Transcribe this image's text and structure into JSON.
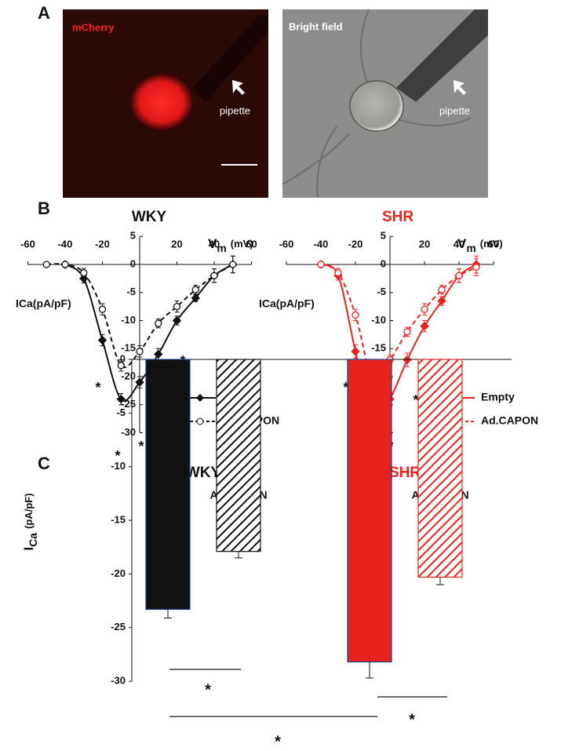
{
  "panel_labels": [
    "A",
    "B",
    "C"
  ],
  "images": [
    {
      "label": "mCherry",
      "annotation": "pipette"
    },
    {
      "label": "Bright field",
      "annotation": "pipette"
    }
  ],
  "chart_data": [
    {
      "type": "line",
      "title": "WKY",
      "title_color": "#111111",
      "x_label": {
        "main": "V",
        "sub": "m",
        "unit": "(mV)"
      },
      "y_label": "ICa(pA/pF)",
      "x": [
        -50,
        -40,
        -30,
        -20,
        -10,
        0,
        10,
        20,
        30,
        40,
        50
      ],
      "series": [
        {
          "name": "Empty",
          "color": "#111111",
          "marker": "diamond",
          "dash": false,
          "values": [
            null,
            0,
            -2.5,
            -13.5,
            -24,
            -21,
            -16,
            -10,
            -6,
            -2,
            0
          ],
          "errors": [
            null,
            0.5,
            0.8,
            1,
            1,
            1,
            1,
            0.8,
            0.6,
            1.2,
            1.5
          ]
        },
        {
          "name": "Ad.CAPON",
          "color": "#111111",
          "marker": "circle",
          "dash": true,
          "values": [
            0,
            0,
            -1.5,
            -8,
            -18,
            -15.5,
            -10.5,
            -7.5,
            -4.5,
            -2,
            0
          ],
          "errors": [
            0.3,
            0.5,
            0.8,
            1,
            1,
            1,
            0.8,
            1,
            0.8,
            1.2,
            1.5
          ]
        }
      ],
      "xlim": [
        -60,
        60
      ],
      "ylim": [
        -30,
        5
      ],
      "xticks": [
        -60,
        -40,
        -20,
        20,
        40,
        60
      ],
      "yticks": [
        5,
        0,
        -5,
        -10,
        -15,
        -20,
        -25,
        -30
      ],
      "annotations": [
        "*",
        "*",
        "*",
        "*",
        "*"
      ]
    },
    {
      "type": "line",
      "title": "SHR",
      "title_color": "#e8221f",
      "x_label": {
        "main": "V",
        "sub": "m",
        "unit": "(mV)"
      },
      "y_label": "ICa(pA/pF)",
      "x": [
        -50,
        -40,
        -30,
        -20,
        -10,
        0,
        10,
        20,
        30,
        40,
        50
      ],
      "series": [
        {
          "name": "Empty",
          "color": "#e8221f",
          "marker": "diamond",
          "dash": false,
          "values": [
            null,
            0,
            -2,
            -15.5,
            -28,
            -24,
            -17,
            -11,
            -6.5,
            -2,
            0
          ],
          "errors": [
            null,
            0.5,
            0.8,
            1.2,
            1.2,
            1.3,
            1.2,
            1,
            0.8,
            1.2,
            1.5
          ]
        },
        {
          "name": "Ad.CAPON",
          "color": "#e8221f",
          "marker": "circle",
          "dash": true,
          "values": [
            null,
            0,
            -1.5,
            -9,
            -20.5,
            -17,
            -12,
            -8,
            -4.5,
            -2,
            -0.5
          ],
          "errors": [
            null,
            0.5,
            0.8,
            1,
            1,
            0.8,
            0.8,
            1,
            0.8,
            1.2,
            1.5
          ]
        }
      ],
      "xlim": [
        -60,
        60
      ],
      "ylim": [
        -30,
        5
      ],
      "xticks": [
        -60,
        -40,
        -20,
        20,
        40,
        60
      ],
      "yticks": [
        5,
        0,
        -5,
        -10,
        -15,
        -20,
        -25,
        -30
      ],
      "annotations": [
        "*",
        "*",
        "*",
        "*",
        "*"
      ]
    },
    {
      "type": "bar",
      "categories": [
        "WKY",
        "SHR"
      ],
      "category_colors": [
        "#111111",
        "#e8221f"
      ],
      "y_label": {
        "main": "I",
        "sub": "Ca",
        "unit": "(pA/pF)"
      },
      "series": [
        {
          "name": "Empty",
          "pattern": "solid",
          "values": [
            -23.3,
            -28.2
          ],
          "errors": [
            0.8,
            1.5
          ]
        },
        {
          "name": "Ad.CAPON",
          "pattern": "hatch",
          "values": [
            -17.9,
            -20.3
          ],
          "errors": [
            0.6,
            0.7
          ]
        }
      ],
      "ylim": [
        -30,
        0
      ],
      "yticks": [
        0,
        -5,
        -10,
        -15,
        -20,
        -25,
        -30
      ],
      "annotations": [
        "*",
        "*",
        "*"
      ]
    }
  ]
}
